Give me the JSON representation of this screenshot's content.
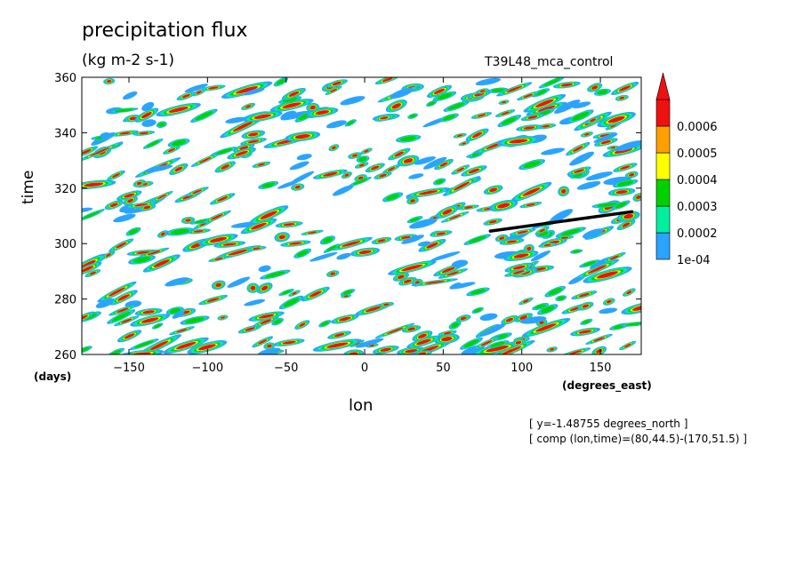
{
  "chart_data": {
    "type": "heatmap",
    "title": "precipitation flux",
    "subtitle": "(kg m-2 s-1)",
    "run_label": "T39L48_mca_control",
    "xlabel": "lon",
    "x_units": "(degrees_east)",
    "ylabel": "time",
    "y_units": "(days)",
    "xlim": [
      -180,
      176
    ],
    "ylim": [
      260,
      360
    ],
    "x_ticks": [
      -150,
      -100,
      -50,
      0,
      50,
      100,
      150
    ],
    "y_ticks": [
      260,
      280,
      300,
      320,
      340,
      360
    ],
    "colorbar": {
      "labels": [
        "1e-04",
        "0.0002",
        "0.0003",
        "0.0004",
        "0.0005",
        "0.0006"
      ],
      "colors": [
        "#2aa4ff",
        "#00f0a0",
        "#00d200",
        "#ffff00",
        "#ffa000",
        "#ee1111"
      ],
      "extend": "max"
    },
    "overlay_line": {
      "lon": [
        80,
        170
      ],
      "time": [
        44.5,
        51.5
      ]
    },
    "annotations": [
      "[ y=-1.48755 degrees_north ]",
      "[ comp (lon,time)=(80,44.5)-(170,51.5) ]"
    ]
  }
}
